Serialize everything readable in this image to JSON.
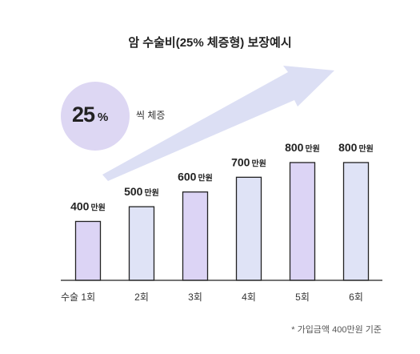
{
  "title": "암 수술비(25% 체증형) 보장예시",
  "badge": {
    "number": "25",
    "percent": "%",
    "note": "씩 체증"
  },
  "footnote": "* 가입금액 400만원 기준",
  "colors": {
    "purple_bar": "#dcd4f5",
    "blue_bar": "#dfe3f6",
    "bar_stroke": "#222222",
    "arrow": "#dcdff4",
    "badge": "#ddd7f3"
  },
  "chart_data": {
    "type": "bar",
    "categories": [
      "수술  1회",
      "2회",
      "3회",
      "4회",
      "5회",
      "6회"
    ],
    "values": [
      400,
      500,
      600,
      700,
      800,
      800
    ],
    "value_units": "만원",
    "value_labels": [
      {
        "num": "400",
        "unit": "만원"
      },
      {
        "num": "500",
        "unit": "만원"
      },
      {
        "num": "600",
        "unit": "만원"
      },
      {
        "num": "700",
        "unit": "만원"
      },
      {
        "num": "800",
        "unit": "만원"
      },
      {
        "num": "800",
        "unit": "만원"
      }
    ],
    "bar_colors": [
      "purple",
      "blue",
      "purple",
      "blue",
      "purple",
      "blue"
    ],
    "ylim": [
      0,
      1050
    ],
    "grid": false,
    "legend": "none"
  }
}
